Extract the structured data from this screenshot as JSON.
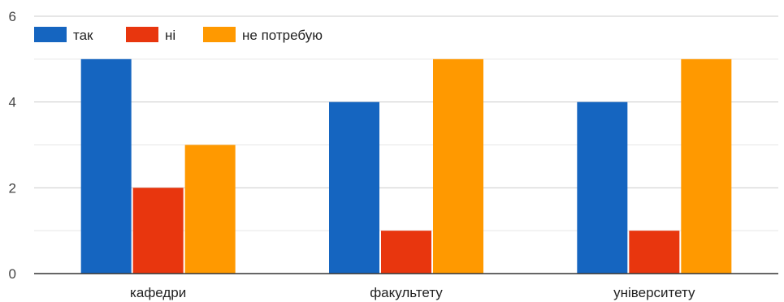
{
  "chart_data": {
    "type": "bar",
    "title": "",
    "xlabel": "",
    "ylabel": "",
    "categories": [
      "кафедри",
      "факультету",
      "університету"
    ],
    "series": [
      {
        "name": "так",
        "color": "#1565c0",
        "values": [
          5,
          4,
          4
        ]
      },
      {
        "name": "ні",
        "color": "#e8360e",
        "values": [
          2,
          1,
          1
        ]
      },
      {
        "name": "не потребую",
        "color": "#ff9900",
        "values": [
          3,
          5,
          5
        ]
      }
    ],
    "ylim": [
      0,
      6
    ],
    "yticks": [
      0,
      2,
      4,
      6
    ],
    "grid": true,
    "legend": "top-left"
  }
}
